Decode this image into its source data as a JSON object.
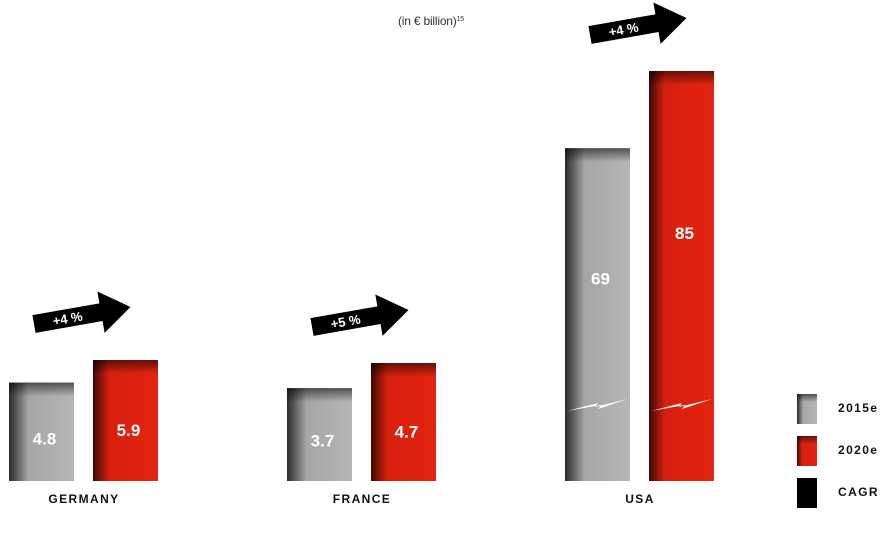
{
  "chart_data": {
    "type": "bar",
    "unit_note": {
      "main": "(in € billion)",
      "superscript": "15"
    },
    "categories": [
      "GERMANY",
      "FRANCE",
      "USA"
    ],
    "series": [
      {
        "name": "2015e",
        "values": [
          4.8,
          3.7,
          69
        ],
        "labels": [
          "4.8",
          "3.7",
          "69"
        ],
        "color": "#b4b4b4"
      },
      {
        "name": "2020e",
        "values": [
          5.9,
          4.7,
          85
        ],
        "labels": [
          "5.9",
          "4.7",
          "85"
        ],
        "color": "#e02210"
      }
    ],
    "cagr": {
      "name": "CAGR",
      "values": [
        "+4 %",
        "+5 %",
        "+4 %"
      ],
      "color": "#000000"
    },
    "axis_breaks": {
      "USA": true
    },
    "legend": {
      "position": "bottom-right",
      "items": [
        {
          "label": "2015e",
          "color": "#b4b4b4"
        },
        {
          "label": "2020e",
          "color": "#e02210"
        },
        {
          "label": "CAGR",
          "color": "#000000"
        }
      ]
    },
    "grid": false
  }
}
